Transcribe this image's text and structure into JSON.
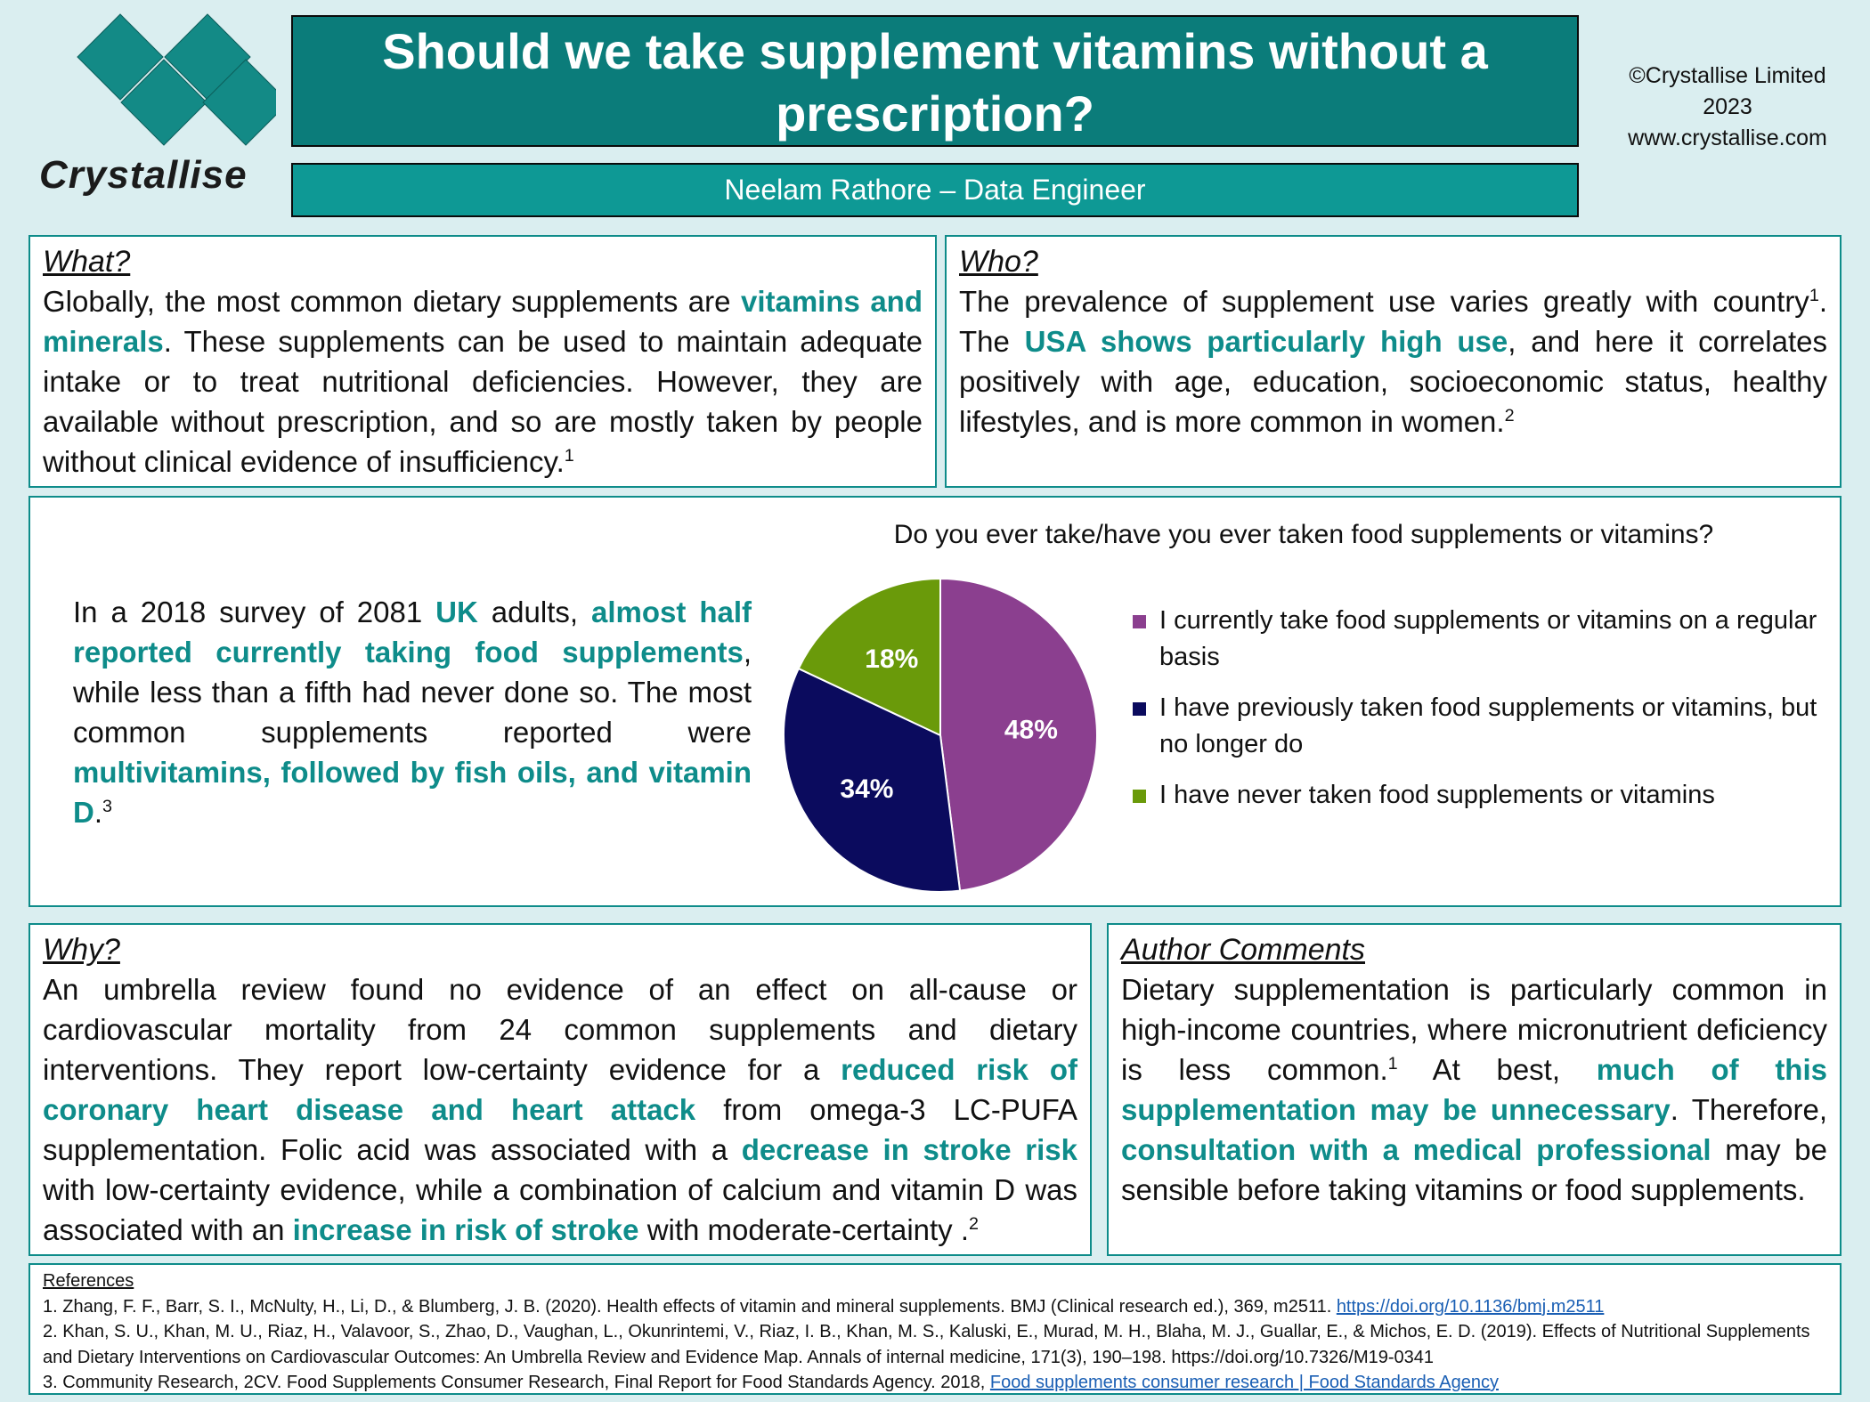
{
  "header": {
    "logo_text": "Crystallise",
    "title_line1": "Should we take supplement vitamins without a",
    "title_line2": "prescription?",
    "author": "Neelam Rathore – Data Engineer",
    "copyright_line1": "©Crystallise Limited",
    "copyright_line2": "2023",
    "copyright_line3": "www.crystallise.com"
  },
  "what": {
    "heading": "What?",
    "t1": "Globally, the most common dietary supplements are ",
    "h1": "vitamins and minerals",
    "t2": ". These supplements can be used to maintain adequate intake or to treat nutritional deficiencies. However, they are available without prescription, and so are mostly taken by people without clinical evidence of insufficiency.",
    "ref": "1"
  },
  "who": {
    "heading": "Who?",
    "t1": "The prevalence of supplement use varies greatly with country",
    "ref1": "1",
    "t2": ". The ",
    "h1": "USA shows particularly high use",
    "t3": ", and here it correlates positively with age, education, socioeconomic status, healthy lifestyles, and is more common in women.",
    "ref2": "2"
  },
  "survey": {
    "t1": "In a 2018 survey of 2081 ",
    "h1": "UK",
    "t2": " adults, ",
    "h2": "almost half reported currently taking food supplements",
    "t3": ", while less than a fifth had never done so. The most common supplements reported were ",
    "h3": "multivitamins, followed by fish oils, and vitamin D",
    "t4": ".",
    "ref": "3"
  },
  "chart_data": {
    "type": "pie",
    "title": "Do you ever take/have you ever taken food supplements or vitamins?",
    "categories": [
      "I currently take food supplements or vitamins on a regular basis",
      "I have previously taken food supplements or vitamins, but no longer do",
      "I have never taken food supplements or vitamins"
    ],
    "values": [
      48,
      34,
      18
    ],
    "labels": [
      "48%",
      "34%",
      "18%"
    ],
    "colors": [
      "#8b3f8f",
      "#0b0b5e",
      "#6a9a0a"
    ],
    "legend_position": "right"
  },
  "why": {
    "heading": "Why?",
    "t1": "An umbrella review found no evidence of an effect on all-cause or cardiovascular mortality from 24 common supplements and dietary interventions. They report low-certainty evidence for a ",
    "h1": "reduced risk of coronary heart disease and heart attack",
    "t2": " from omega-3 LC-PUFA supplementation. Folic acid was associated with a ",
    "h2": "decrease in stroke risk",
    "t3": " with low-certainty evidence, while a combination of calcium and vitamin D was associated with an ",
    "h3": "increase in risk of stroke",
    "t4": " with moderate-certainty .",
    "ref": "2"
  },
  "comments": {
    "heading": "Author Comments",
    "t1": "Dietary supplementation is particularly common in high-income countries, where micronutrient deficiency is less common.",
    "ref": "1",
    "t2": " At best, ",
    "h1": "much of this supplementation may be unnecessary",
    "t3": ". Therefore, ",
    "h2": "consultation with a medical professional",
    "t4": " may be sensible before taking vitamins or food supplements."
  },
  "references": {
    "label": "References",
    "r1": "1. Zhang, F. F., Barr, S. I., McNulty, H., Li, D., & Blumberg, J. B. (2020). Health effects of vitamin and mineral supplements. BMJ (Clinical research ed.), 369, m2511. ",
    "r1_link": "https://doi.org/10.1136/bmj.m2511",
    "r2": "2. Khan, S. U., Khan, M. U., Riaz, H., Valavoor, S., Zhao, D., Vaughan, L., Okunrintemi, V., Riaz, I. B., Khan, M. S., Kaluski, E., Murad, M. H., Blaha, M. J., Guallar, E., & Michos, E. D. (2019). Effects of Nutritional Supplements and Dietary Interventions on Cardiovascular Outcomes: An Umbrella Review and Evidence Map. Annals of internal medicine, 171(3), 190–198. https://doi.org/10.7326/M19-0341",
    "r3": "3. Community Research, 2CV. Food Supplements Consumer Research, Final Report for Food Standards Agency. 2018, ",
    "r3_link": "Food supplements consumer research | Food Standards Agency"
  }
}
